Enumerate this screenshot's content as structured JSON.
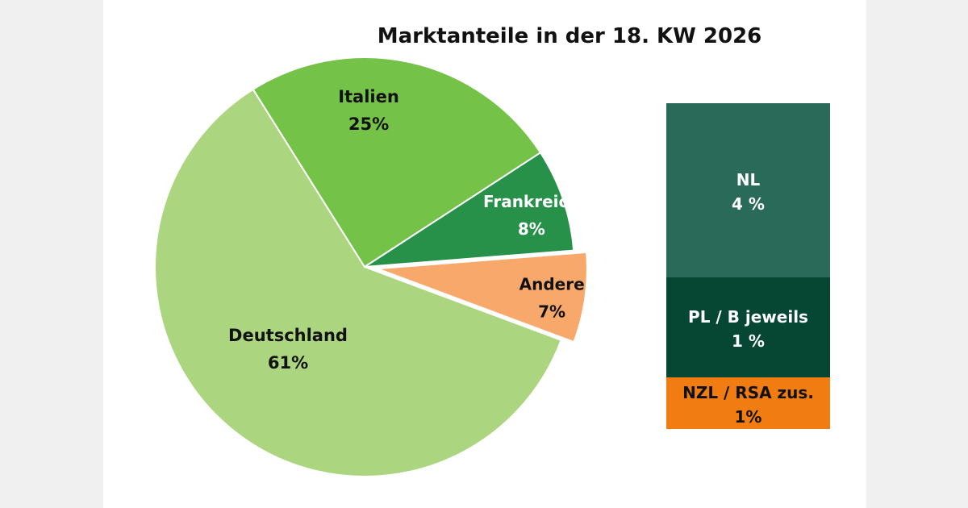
{
  "chart_data": [
    {
      "type": "pie",
      "title": "Marktanteile in der 18. KW 2026",
      "slices": [
        {
          "label": "Deutschland",
          "value": 61,
          "value_label": "61%",
          "color": "#acd57f",
          "text_color": "#111111"
        },
        {
          "label": "Italien",
          "value": 25,
          "value_label": "25%",
          "color": "#74c247",
          "text_color": "#111111"
        },
        {
          "label": "Frankreich",
          "value": 8,
          "value_label": "8%",
          "color": "#27914a",
          "text_color": "#ffffff"
        },
        {
          "label": "Andere",
          "value": 7,
          "value_label": "7%",
          "color": "#f7a86a",
          "text_color": "#111111",
          "exploded": true
        }
      ]
    },
    {
      "type": "bar",
      "stacked": true,
      "segments": [
        {
          "label": "NL",
          "value": 4,
          "value_label": "4 %",
          "color": "#2a6a58",
          "text_color": "#ffffff"
        },
        {
          "label": "PL / B jeweils",
          "value": 1,
          "value_label": "1 %",
          "color": "#064734",
          "text_color": "#ffffff"
        },
        {
          "label": "NZL / RSA zus.",
          "value": 1,
          "value_label": "1%",
          "color": "#f07c12",
          "text_color": "#111111"
        }
      ]
    }
  ]
}
